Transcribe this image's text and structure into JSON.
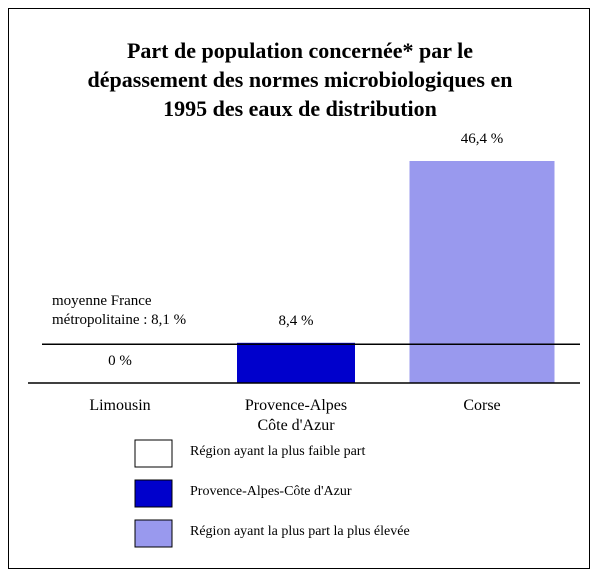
{
  "chart_data": {
    "type": "bar",
    "title": "Part de population concernée* par le\ndépassement des normes microbiologiques en\n1995 des eaux de distribution",
    "categories": [
      "Limousin",
      "Provence-Alpes\nCôte d'Azur",
      "Corse"
    ],
    "values": [
      0,
      8.4,
      46.4
    ],
    "value_labels": [
      "0 %",
      "8,4 %",
      "46,4 %"
    ],
    "colors": [
      "#ffffff",
      "#0000cc",
      "#9999ee"
    ],
    "reference_line": {
      "value": 8.1,
      "label": "moyenne France\nmétropolitaine : 8,1 %"
    },
    "legend": [
      "Région ayant la plus faible part",
      "Provence-Alpes-Côte d'Azur",
      "Région ayant la plus part la plus élevée"
    ]
  }
}
